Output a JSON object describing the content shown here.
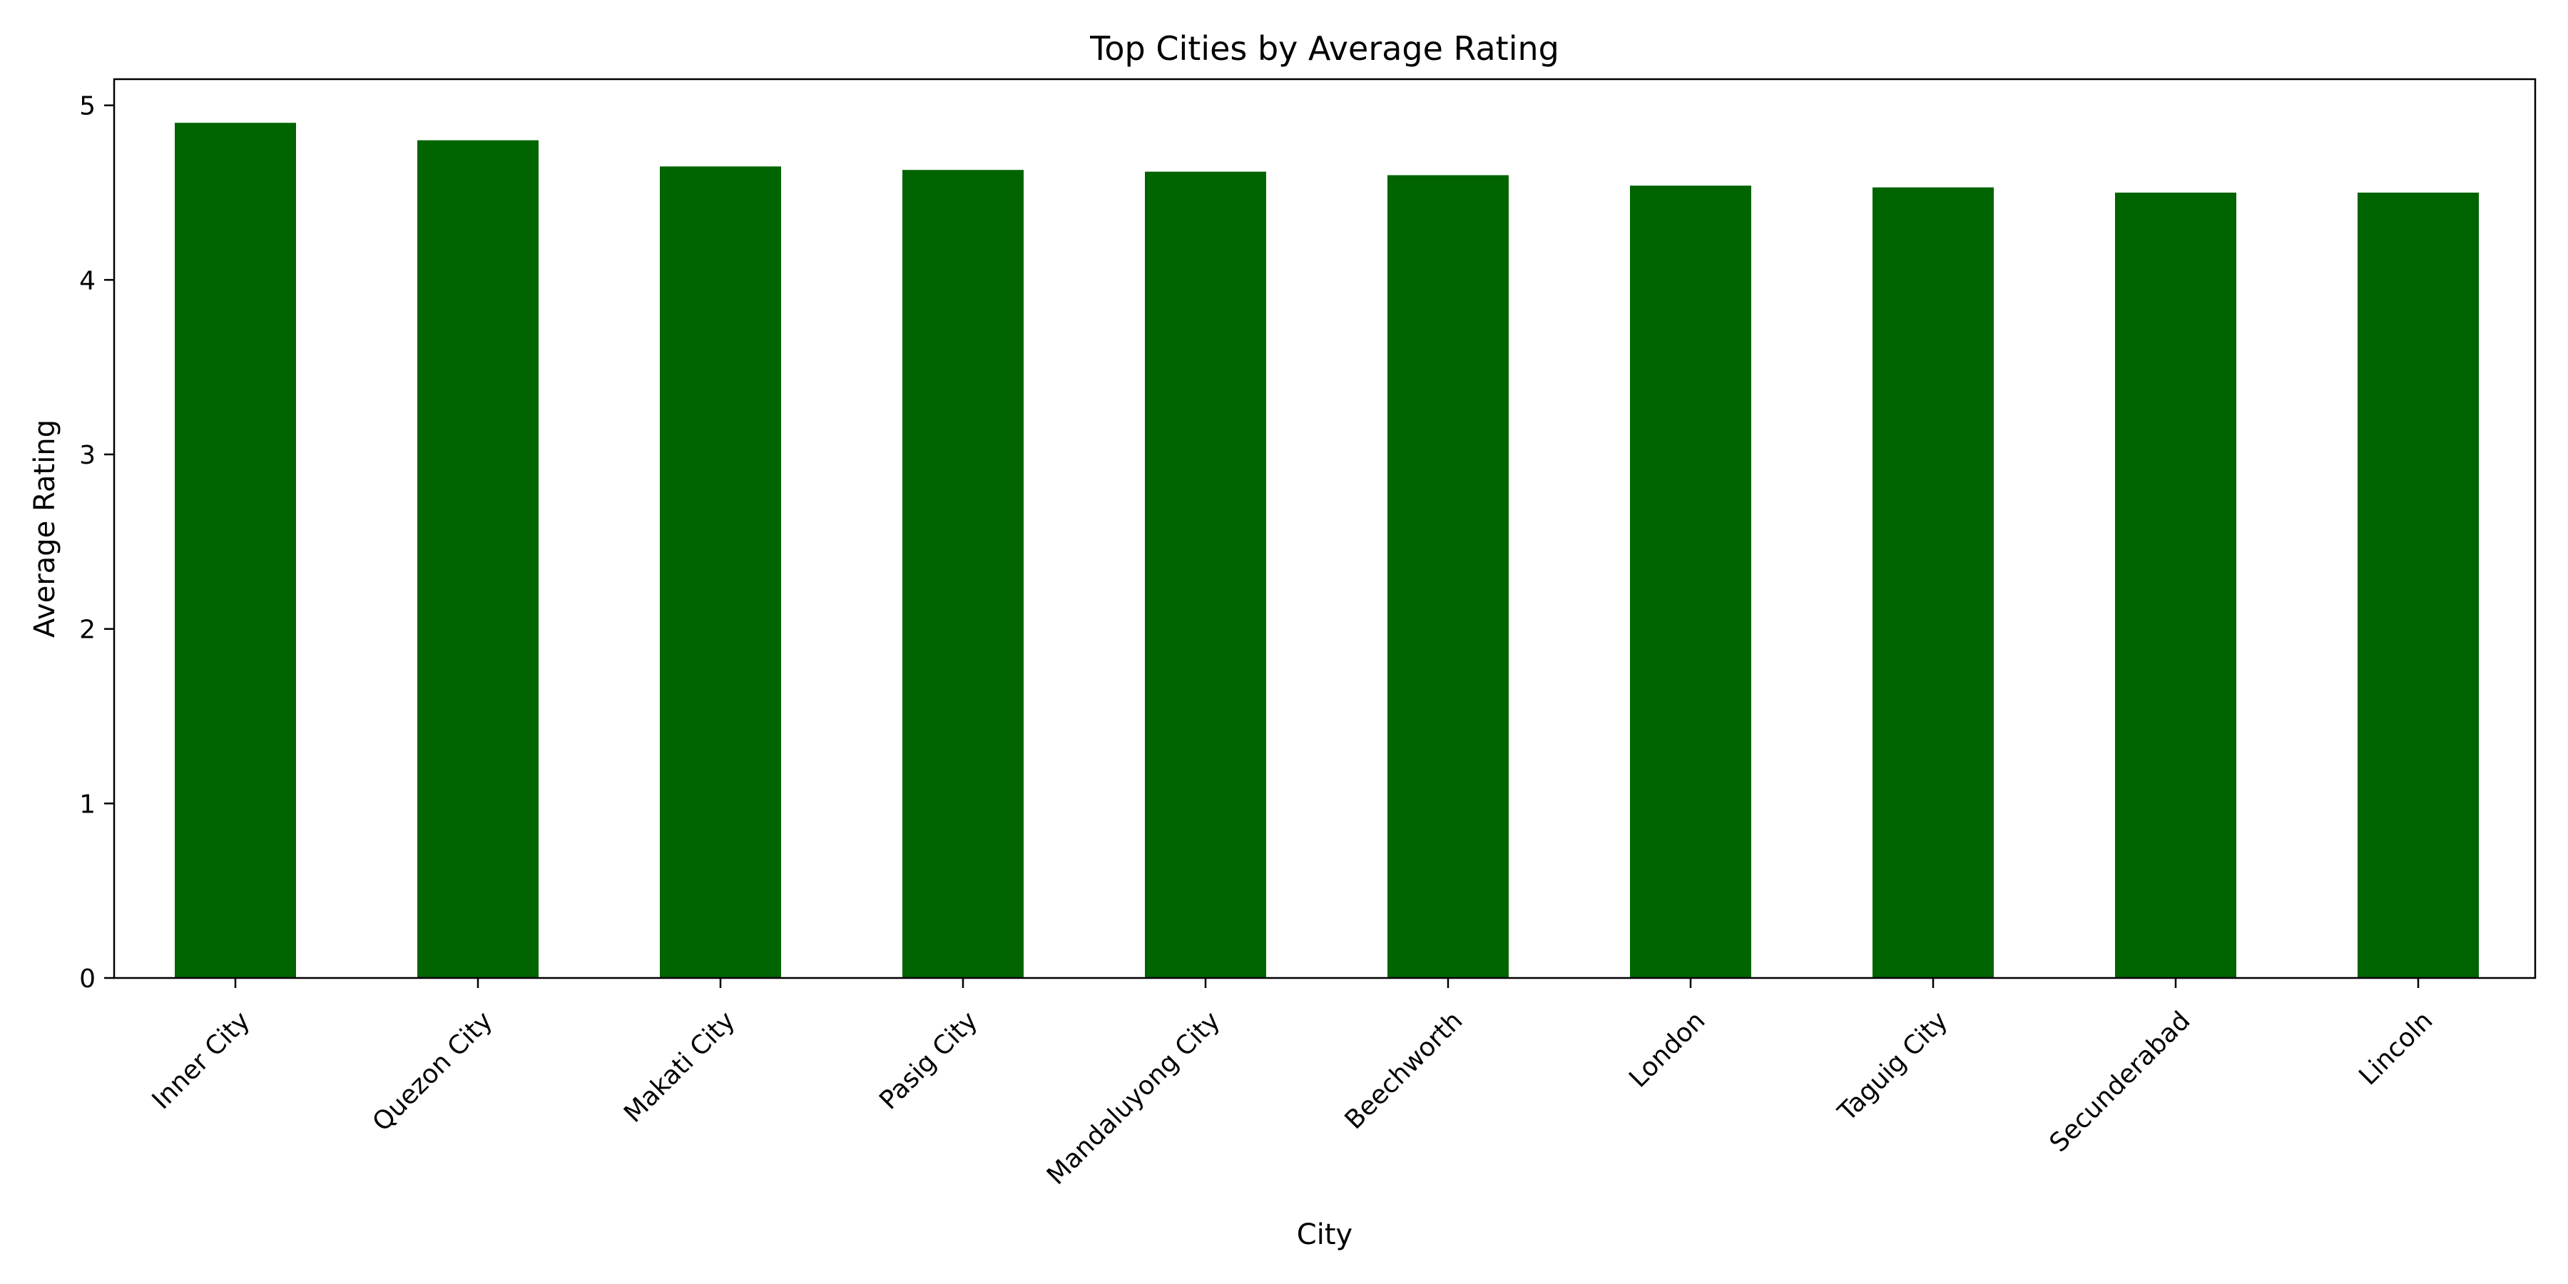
{
  "chart_data": {
    "type": "bar",
    "title": "Top Cities by Average Rating",
    "xlabel": "City",
    "ylabel": "Average Rating",
    "categories": [
      "Inner City",
      "Quezon City",
      "Makati City",
      "Pasig City",
      "Mandaluyong City",
      "Beechworth",
      "London",
      "Taguig City",
      "Secunderabad",
      "Lincoln"
    ],
    "values": [
      4.9,
      4.8,
      4.65,
      4.63,
      4.62,
      4.6,
      4.54,
      4.53,
      4.5,
      4.5
    ],
    "ylim": [
      0,
      5.15
    ],
    "yticks": [
      "0",
      "1",
      "2",
      "3",
      "4",
      "5"
    ],
    "bar_color": "#006400",
    "grid": false,
    "legend": "none"
  }
}
